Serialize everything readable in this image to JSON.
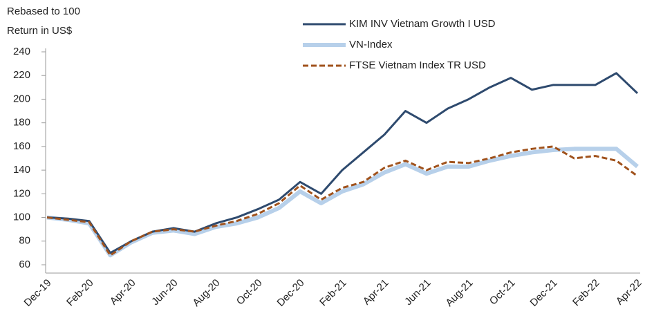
{
  "chart_data": {
    "type": "line",
    "notes": [
      "Rebased to 100",
      "Return in US$"
    ],
    "categories": [
      "Dec-19",
      null,
      "Feb-20",
      null,
      "Apr-20",
      null,
      "Jun-20",
      null,
      "Aug-20",
      null,
      "Oct-20",
      null,
      "Dec-20",
      null,
      "Feb-21",
      null,
      "Apr-21",
      null,
      "Jun-21",
      null,
      "Aug-21",
      null,
      "Oct-21",
      null,
      "Dec-21",
      null,
      "Feb-22",
      null,
      "Apr-22"
    ],
    "series": [
      {
        "name": "KIM INV Vietnam Growth I USD",
        "color": "#2e4a6e",
        "values": [
          100,
          99,
          97,
          70,
          80,
          88,
          91,
          88,
          95,
          100,
          107,
          115,
          130,
          120,
          140,
          155,
          170,
          190,
          180,
          192,
          200,
          210,
          218,
          208,
          212,
          212,
          212,
          222,
          205
        ]
      },
      {
        "name": "VN-Index",
        "color": "#b7d0ea",
        "values": [
          100,
          98,
          95,
          68,
          79,
          87,
          89,
          86,
          92,
          95,
          100,
          108,
          122,
          112,
          122,
          128,
          138,
          145,
          137,
          143,
          143,
          148,
          152,
          155,
          157,
          158,
          158,
          158,
          143
        ]
      },
      {
        "name": "FTSE Vietnam Index TR USD",
        "color": "#a0521c",
        "line_style": "dashed",
        "values": [
          100,
          98,
          96,
          68,
          80,
          88,
          90,
          88,
          93,
          97,
          103,
          112,
          127,
          115,
          125,
          130,
          142,
          148,
          140,
          147,
          146,
          150,
          155,
          158,
          160,
          150,
          152,
          148,
          135
        ]
      }
    ],
    "ylim": [
      60,
      240
    ],
    "yticks": [
      60,
      80,
      100,
      120,
      140,
      160,
      180,
      200,
      220,
      240
    ],
    "legend": "top"
  }
}
